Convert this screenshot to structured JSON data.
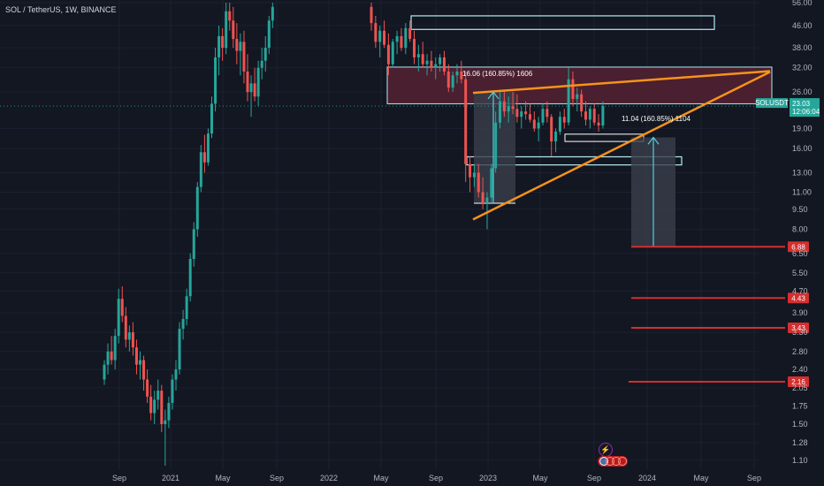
{
  "header": {
    "title": "SOL / TetherUS, 1W, BINANCE"
  },
  "colors": {
    "background": "#131722",
    "up": "#26a69a",
    "down": "#ef5350",
    "trendline": "#f7931a",
    "zone_border": "#b2ebf2",
    "resistance_fill": "#4a1f2f",
    "support_line": "#d32f2f",
    "measure_fill": "#3a3f4b",
    "price_tag": "#26a69a",
    "level_tag": "#d32f2f"
  },
  "chart_data": {
    "type": "candlestick",
    "symbol": "SOLUSDT",
    "timeframe": "1W",
    "exchange": "BINANCE",
    "y_scale": "log",
    "ylim": [
      1.05,
      56
    ],
    "y_ticks": [
      "56.00",
      "46.00",
      "38.00",
      "32.00",
      "26.00",
      "23.03",
      "19.00",
      "16.00",
      "13.00",
      "11.00",
      "9.50",
      "8.00",
      "6.50",
      "5.50",
      "4.70",
      "3.90",
      "3.30",
      "2.80",
      "2.40",
      "2.05",
      "1.75",
      "1.50",
      "1.28",
      "1.10"
    ],
    "x_ticks": [
      "Sep",
      "2021",
      "May",
      "Sep",
      "2022",
      "May",
      "Sep",
      "2023",
      "May",
      "Sep",
      "2024",
      "May",
      "Sep"
    ],
    "current_price": {
      "symbol": "SOLUSDT",
      "value": "23.03",
      "countdown": "12:06:04"
    },
    "price_levels": [
      "6.88",
      "4.43",
      "3.43",
      "2.16"
    ],
    "annotations": [
      {
        "text": "16.06 (160.85%) 1606"
      },
      {
        "text": "11.04 (160.85%) 1104"
      }
    ],
    "candles_note": "weekly OHLC approximated from visual",
    "ohlc": [
      [
        2.2,
        2.6,
        2.1,
        2.5
      ],
      [
        2.5,
        3.0,
        2.3,
        2.8
      ],
      [
        2.8,
        3.2,
        2.5,
        2.6
      ],
      [
        2.6,
        3.4,
        2.4,
        3.2
      ],
      [
        3.2,
        4.8,
        3.0,
        4.4
      ],
      [
        4.4,
        4.9,
        3.6,
        3.8
      ],
      [
        3.8,
        4.1,
        2.9,
        3.1
      ],
      [
        3.1,
        3.5,
        2.8,
        3.3
      ],
      [
        3.3,
        3.6,
        2.7,
        2.9
      ],
      [
        2.9,
        3.1,
        2.3,
        2.5
      ],
      [
        2.5,
        2.8,
        2.2,
        2.6
      ],
      [
        2.6,
        2.7,
        2.0,
        2.2
      ],
      [
        2.2,
        2.4,
        1.8,
        1.9
      ],
      [
        1.9,
        2.1,
        1.55,
        1.65
      ],
      [
        1.65,
        2.0,
        1.5,
        1.85
      ],
      [
        1.85,
        2.2,
        1.7,
        2.0
      ],
      [
        2.0,
        2.1,
        1.4,
        1.5
      ],
      [
        1.5,
        1.7,
        1.05,
        1.55
      ],
      [
        1.55,
        1.9,
        1.45,
        1.8
      ],
      [
        1.8,
        2.3,
        1.7,
        2.2
      ],
      [
        2.2,
        2.6,
        2.0,
        2.4
      ],
      [
        2.4,
        3.6,
        2.3,
        3.4
      ],
      [
        3.4,
        4.0,
        3.1,
        3.7
      ],
      [
        3.7,
        4.8,
        3.5,
        4.5
      ],
      [
        4.5,
        6.5,
        4.3,
        6.2
      ],
      [
        6.2,
        8.5,
        5.8,
        8.0
      ],
      [
        8.0,
        12.0,
        7.5,
        11.5
      ],
      [
        11.5,
        16.5,
        11.0,
        15.5
      ],
      [
        15.5,
        18.0,
        13.0,
        14.2
      ],
      [
        14.2,
        19.0,
        13.8,
        18.2
      ],
      [
        18.2,
        25.0,
        17.5,
        23.5
      ],
      [
        23.5,
        38.0,
        22.0,
        35.0
      ],
      [
        35.0,
        46.0,
        30.0,
        42.0
      ],
      [
        42.0,
        45.0,
        34.0,
        38.0
      ],
      [
        38.0,
        56.0,
        36.0,
        52.0
      ],
      [
        52.0,
        56.0,
        44.0,
        48.0
      ],
      [
        48.0,
        54.0,
        38.0,
        41.0
      ],
      [
        41.0,
        47.0,
        33.0,
        37.0
      ],
      [
        37.0,
        43.0,
        30.0,
        40.0
      ],
      [
        40.0,
        44.0,
        28.0,
        31.0
      ],
      [
        31.0,
        36.0,
        24.0,
        26.0
      ],
      [
        26.0,
        30.0,
        21.0,
        28.0
      ],
      [
        28.0,
        32.0,
        24.0,
        25.0
      ],
      [
        25.0,
        34.0,
        23.0,
        32.0
      ],
      [
        32.0,
        38.0,
        29.0,
        34.0
      ],
      [
        34.0,
        42.0,
        31.0,
        38.0
      ],
      [
        38.0,
        50.0,
        36.0,
        48.0
      ],
      [
        48.0,
        56.0,
        45.0,
        54.0
      ]
    ],
    "ohlc_late": [
      [
        54.0,
        56.0,
        44.0,
        47.0
      ],
      [
        47.0,
        50.0,
        38.0,
        40.0
      ],
      [
        40.0,
        46.0,
        35.0,
        44.0
      ],
      [
        44.0,
        48.0,
        38.0,
        39.0
      ],
      [
        39.0,
        43.0,
        30.0,
        33.0
      ],
      [
        33.0,
        41.0,
        32.0,
        40.0
      ],
      [
        40.0,
        44.0,
        36.0,
        42.0
      ],
      [
        42.0,
        45.0,
        37.0,
        38.0
      ],
      [
        38.0,
        47.0,
        36.0,
        45.0
      ],
      [
        45.0,
        48.0,
        40.0,
        41.0
      ],
      [
        41.0,
        44.0,
        33.0,
        35.0
      ],
      [
        35.0,
        39.0,
        31.0,
        36.0
      ],
      [
        36.0,
        40.0,
        32.0,
        33.0
      ],
      [
        33.0,
        36.0,
        30.0,
        34.0
      ],
      [
        34.0,
        37.0,
        31.0,
        32.0
      ],
      [
        32.0,
        35.0,
        29.0,
        33.0
      ],
      [
        33.0,
        36.0,
        31.0,
        35.0
      ],
      [
        35.0,
        37.0,
        30.0,
        31.0
      ],
      [
        31.0,
        33.0,
        26.0,
        27.0
      ],
      [
        27.0,
        31.0,
        26.0,
        30.0
      ],
      [
        30.0,
        33.0,
        28.0,
        31.0
      ],
      [
        31.0,
        34.0,
        28.0,
        29.0
      ],
      [
        29.0,
        31.0,
        12.0,
        14.0
      ],
      [
        14.0,
        15.0,
        11.0,
        12.5
      ],
      [
        12.5,
        14.0,
        11.5,
        13.0
      ],
      [
        13.0,
        14.0,
        10.5,
        11.0
      ],
      [
        11.0,
        12.5,
        9.5,
        10.0
      ],
      [
        10.0,
        11.0,
        8.0,
        10.5
      ],
      [
        10.5,
        14.0,
        10.0,
        13.5
      ],
      [
        13.5,
        22.0,
        13.0,
        20.0
      ],
      [
        20.0,
        26.0,
        19.0,
        24.0
      ],
      [
        24.0,
        26.5,
        21.0,
        22.0
      ],
      [
        22.0,
        25.0,
        20.0,
        23.0
      ],
      [
        23.0,
        26.0,
        21.5,
        22.5
      ],
      [
        22.5,
        25.5,
        20.0,
        21.0
      ],
      [
        21.0,
        23.0,
        19.0,
        22.0
      ],
      [
        22.0,
        24.0,
        20.5,
        21.5
      ],
      [
        21.5,
        23.5,
        20.0,
        20.5
      ],
      [
        20.5,
        22.0,
        18.5,
        19.0
      ],
      [
        19.0,
        21.0,
        17.0,
        20.0
      ],
      [
        20.0,
        23.5,
        19.5,
        22.5
      ],
      [
        22.5,
        24.0,
        20.0,
        21.0
      ],
      [
        21.0,
        21.5,
        15.0,
        17.0
      ],
      [
        17.0,
        19.0,
        15.5,
        18.5
      ],
      [
        18.5,
        22.0,
        18.0,
        21.0
      ],
      [
        21.0,
        22.5,
        19.0,
        20.0
      ],
      [
        20.0,
        32.0,
        19.5,
        29.0
      ],
      [
        29.0,
        31.0,
        23.0,
        24.5
      ],
      [
        24.5,
        27.0,
        22.0,
        25.5
      ],
      [
        25.5,
        26.5,
        21.0,
        22.0
      ],
      [
        22.0,
        24.0,
        19.5,
        20.5
      ],
      [
        20.5,
        23.0,
        19.0,
        22.5
      ],
      [
        22.5,
        23.5,
        19.5,
        20.0
      ],
      [
        20.0,
        21.5,
        18.5,
        19.5
      ],
      [
        19.5,
        24.0,
        19.0,
        23.03
      ]
    ]
  }
}
